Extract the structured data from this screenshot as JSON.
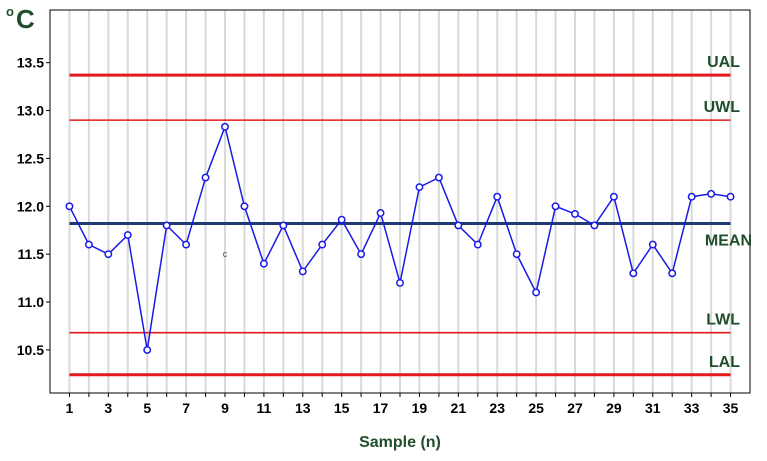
{
  "chart_data": {
    "type": "line",
    "unit_label": "C",
    "unit_symbol": "o",
    "xlabel": "Sample (n)",
    "ylabel": "",
    "xlim": [
      0,
      36
    ],
    "ylim": [
      10.05,
      14.05
    ],
    "x_ticks": [
      1,
      3,
      5,
      7,
      9,
      11,
      13,
      15,
      17,
      19,
      21,
      23,
      25,
      27,
      29,
      31,
      33,
      35
    ],
    "y_ticks": [
      10.5,
      11.0,
      11.5,
      12.0,
      12.5,
      13.0,
      13.5
    ],
    "y_tick_labels": [
      "10.5",
      "11.0",
      "11.5",
      "12.0",
      "12.5",
      "13.0",
      "13.5"
    ],
    "grid": true,
    "series": [
      {
        "color": "#1a1ae6",
        "marker": "open-circle",
        "x": [
          1,
          2,
          3,
          4,
          5,
          6,
          7,
          8,
          9,
          10,
          11,
          12,
          13,
          14,
          15,
          16,
          17,
          18,
          19,
          20,
          21,
          22,
          23,
          24,
          25,
          26,
          27,
          28,
          29,
          30,
          31,
          32,
          33,
          34,
          35
        ],
        "values": [
          12.0,
          11.6,
          11.5,
          11.7,
          10.5,
          11.8,
          11.6,
          12.3,
          12.83,
          12.0,
          11.4,
          11.8,
          11.32,
          11.6,
          11.86,
          11.5,
          11.93,
          11.2,
          12.2,
          12.3,
          11.8,
          11.6,
          12.1,
          11.5,
          11.1,
          12.0,
          11.92,
          11.8,
          12.1,
          11.3,
          11.6,
          11.3,
          12.1,
          12.13,
          12.1
        ]
      }
    ],
    "control_lines": [
      {
        "label": "UAL",
        "value": 13.37,
        "color": "#e31a1c",
        "weight": "thick"
      },
      {
        "label": "UWL",
        "value": 12.9,
        "color": "#e31a1c",
        "weight": "thin"
      },
      {
        "label": "MEAN",
        "value": 11.82,
        "color": "#1f3b73",
        "weight": "thick"
      },
      {
        "label": "LWL",
        "value": 10.68,
        "color": "#e31a1c",
        "weight": "thin"
      },
      {
        "label": "LAL",
        "value": 10.24,
        "color": "#e31a1c",
        "weight": "thick"
      }
    ],
    "annotations": [
      {
        "text": "c",
        "x": 9,
        "y": 11.47
      }
    ],
    "colors": {
      "line_label": "#1f4e2b",
      "axis_label": "#1f4e2b",
      "grid": "#d9d9d9"
    }
  }
}
